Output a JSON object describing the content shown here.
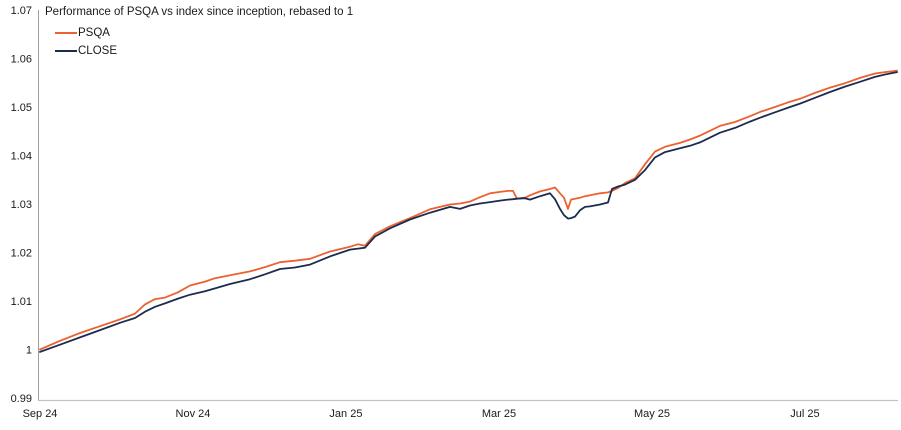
{
  "title": "Performance of PSQA vs index since inception, rebased to 1",
  "legend": {
    "items": [
      {
        "label": "PSQA",
        "color": "#EB612F"
      },
      {
        "label": "CLOSE",
        "color": "#1C2C4E"
      }
    ]
  },
  "axis_colors": {
    "y_axis_line": "#9e9e9e",
    "x_axis_line": "#c2c2c2",
    "tick_text": "#1a1a1a"
  },
  "chart_data": {
    "type": "line",
    "title": "Performance of PSQA vs index since inception, rebased to 1",
    "xlabel": "",
    "ylabel": "",
    "ylim": [
      0.99,
      1.07
    ],
    "grid": false,
    "legend_position": "top-left",
    "y_ticks": [
      {
        "label": "1.07",
        "value": 1.07
      },
      {
        "label": "1.06",
        "value": 1.06
      },
      {
        "label": "1.05",
        "value": 1.05
      },
      {
        "label": "1.04",
        "value": 1.04
      },
      {
        "label": "1.03",
        "value": 1.03
      },
      {
        "label": "1.02",
        "value": 1.02
      },
      {
        "label": "1.01",
        "value": 1.01
      },
      {
        "label": "1",
        "value": 1.0
      },
      {
        "label": "0.99",
        "value": 0.99
      }
    ],
    "x_ticks": [
      {
        "label": "Sep 24",
        "t": 0.0
      },
      {
        "label": "Nov 24",
        "t": 0.1785
      },
      {
        "label": "Jan 25",
        "t": 0.357
      },
      {
        "label": "Mar 25",
        "t": 0.5356
      },
      {
        "label": "May 25",
        "t": 0.7141
      },
      {
        "label": "Jul 25",
        "t": 0.8926
      }
    ],
    "t": [
      0,
      0.0233,
      0.0467,
      0.07,
      0.0933,
      0.1108,
      0.1225,
      0.1342,
      0.1459,
      0.161,
      0.175,
      0.1925,
      0.2042,
      0.2217,
      0.245,
      0.2625,
      0.28,
      0.2975,
      0.315,
      0.3384,
      0.3617,
      0.3711,
      0.3792,
      0.3909,
      0.4084,
      0.4317,
      0.4551,
      0.4784,
      0.4901,
      0.5017,
      0.5134,
      0.5251,
      0.5367,
      0.5461,
      0.5519,
      0.5566,
      0.5659,
      0.5718,
      0.5834,
      0.5951,
      0.6009,
      0.6068,
      0.6114,
      0.6161,
      0.6196,
      0.6243,
      0.6301,
      0.6359,
      0.6418,
      0.6534,
      0.6628,
      0.6674,
      0.6744,
      0.6826,
      0.6943,
      0.7059,
      0.7176,
      0.7293,
      0.7468,
      0.7585,
      0.7701,
      0.7818,
      0.7935,
      0.811,
      0.8285,
      0.8402,
      0.8577,
      0.8752,
      0.8868,
      0.9043,
      0.9218,
      0.9393,
      0.9568,
      0.9743,
      0.986,
      1
    ],
    "series": [
      {
        "name": "PSQA",
        "color": "#EB612F",
        "values": [
          1.0,
          1.0018,
          1.0034,
          1.0048,
          1.0062,
          1.0074,
          1.0093,
          1.0104,
          1.0107,
          1.0118,
          1.0132,
          1.014,
          1.0147,
          1.0153,
          1.0161,
          1.017,
          1.018,
          1.0183,
          1.0187,
          1.0202,
          1.0212,
          1.0217,
          1.0214,
          1.0238,
          1.0254,
          1.0271,
          1.0289,
          1.0299,
          1.0301,
          1.0305,
          1.0314,
          1.0322,
          1.0325,
          1.0327,
          1.0327,
          1.0311,
          1.0313,
          1.0318,
          1.0326,
          1.0331,
          1.0334,
          1.0322,
          1.0313,
          1.029,
          1.0309,
          1.0311,
          1.0313,
          1.0316,
          1.0318,
          1.0322,
          1.0324,
          1.0327,
          1.0333,
          1.0343,
          1.0353,
          1.0382,
          1.0408,
          1.0418,
          1.0426,
          1.0433,
          1.0441,
          1.0451,
          1.0461,
          1.0469,
          1.0481,
          1.049,
          1.05,
          1.0511,
          1.0517,
          1.0529,
          1.054,
          1.0549,
          1.056,
          1.0569,
          1.0572,
          1.0575
        ]
      },
      {
        "name": "CLOSE",
        "color": "#1C2C4E",
        "values": [
          0.9995,
          1.001,
          1.0025,
          1.004,
          1.0055,
          1.0065,
          1.0078,
          1.0088,
          1.0095,
          1.0105,
          1.0113,
          1.012,
          1.0126,
          1.0135,
          1.0145,
          1.0155,
          1.0166,
          1.0169,
          1.0175,
          1.0192,
          1.0206,
          1.0208,
          1.021,
          1.0233,
          1.025,
          1.0268,
          1.0282,
          1.0294,
          1.029,
          1.0297,
          1.0301,
          1.0304,
          1.0307,
          1.0309,
          1.031,
          1.0311,
          1.0312,
          1.0309,
          1.0316,
          1.0322,
          1.031,
          1.029,
          1.0277,
          1.027,
          1.0271,
          1.0274,
          1.0287,
          1.0294,
          1.0295,
          1.0299,
          1.0303,
          1.0331,
          1.0336,
          1.034,
          1.035,
          1.037,
          1.0396,
          1.0407,
          1.0415,
          1.042,
          1.0427,
          1.0437,
          1.0447,
          1.0457,
          1.047,
          1.0478,
          1.0489,
          1.05,
          1.0507,
          1.0519,
          1.0531,
          1.0542,
          1.0552,
          1.0562,
          1.0567,
          1.0572
        ]
      }
    ]
  }
}
